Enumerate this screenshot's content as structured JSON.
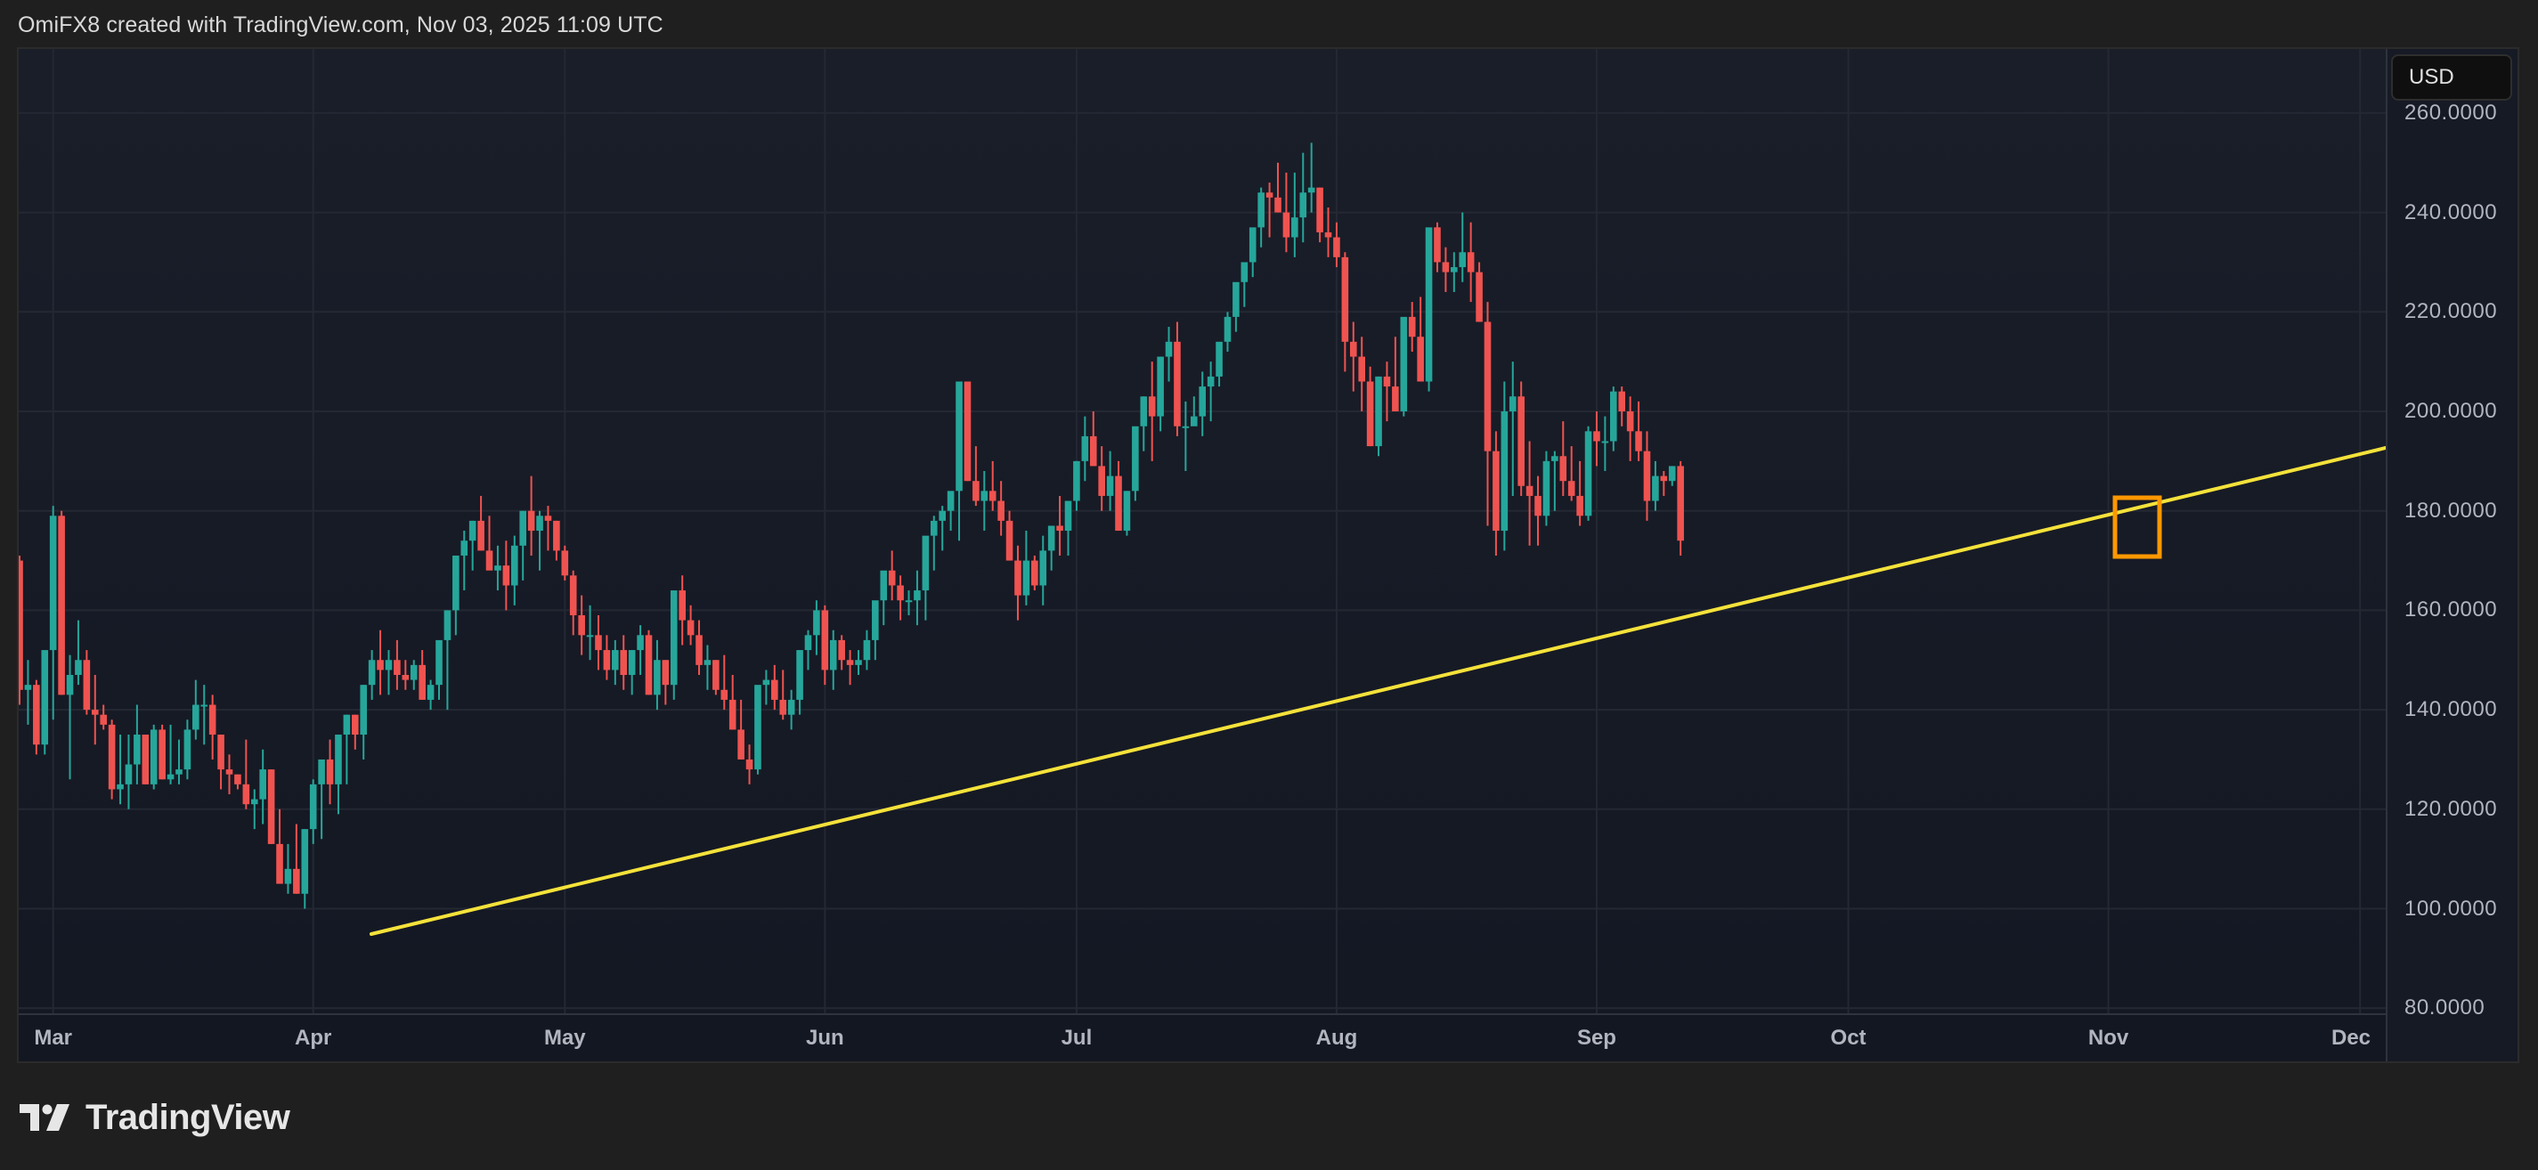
{
  "header": {
    "caption": "OmiFX8 created with TradingView.com, Nov 03, 2025 11:09 UTC"
  },
  "price_axis": {
    "currency_button": "USD",
    "ticks": [
      {
        "value": 260,
        "label": "260.0000"
      },
      {
        "value": 240,
        "label": "240.0000"
      },
      {
        "value": 220,
        "label": "220.0000"
      },
      {
        "value": 200,
        "label": "200.0000"
      },
      {
        "value": 180,
        "label": "180.0000"
      },
      {
        "value": 160,
        "label": "160.0000"
      },
      {
        "value": 140,
        "label": "140.0000"
      },
      {
        "value": 120,
        "label": "120.0000"
      },
      {
        "value": 100,
        "label": "100.0000"
      },
      {
        "value": 80,
        "label": "80.0000"
      }
    ]
  },
  "time_axis": {
    "ticks": [
      {
        "label": "Mar",
        "day": 4
      },
      {
        "label": "Apr",
        "day": 35
      },
      {
        "label": "May",
        "day": 65
      },
      {
        "label": "Jun",
        "day": 96
      },
      {
        "label": "Jul",
        "day": 126
      },
      {
        "label": "Aug",
        "day": 157
      },
      {
        "label": "Sep",
        "day": 188
      },
      {
        "label": "Oct",
        "day": 218
      },
      {
        "label": "Nov",
        "day": 249
      },
      {
        "label": "Dec",
        "day": 279
      }
    ]
  },
  "footer": {
    "brand": "TradingView"
  },
  "colors": {
    "up": "#26a69a",
    "down": "#ef5350",
    "trendline": "#f5e23a",
    "highlight_box": "#ff9800",
    "grid": "#242833"
  },
  "chart_data": {
    "type": "candlestick",
    "title": "",
    "currency": "USD",
    "xlabel": "",
    "ylabel": "",
    "ylim": [
      80,
      262
    ],
    "x_range": [
      "Feb 25, 2025",
      "Nov 3, 2025"
    ],
    "x_ticks": [
      "Mar",
      "Apr",
      "May",
      "Jun",
      "Jul",
      "Aug",
      "Sep",
      "Oct",
      "Nov",
      "Dec"
    ],
    "y_ticks": [
      80,
      100,
      120,
      140,
      160,
      180,
      200,
      220,
      240,
      260
    ],
    "grid": true,
    "first_candle_day_offset": 0,
    "ohlc": [
      [
        170,
        171,
        141,
        144
      ],
      [
        144,
        150,
        137,
        145
      ],
      [
        145,
        146,
        131,
        133
      ],
      [
        133,
        148,
        131,
        152
      ],
      [
        152,
        181,
        138,
        179
      ],
      [
        179,
        180,
        143,
        143
      ],
      [
        143,
        151,
        126,
        147
      ],
      [
        147,
        158,
        145,
        150
      ],
      [
        150,
        152,
        139,
        140
      ],
      [
        140,
        147,
        133,
        139
      ],
      [
        139,
        141,
        136,
        137
      ],
      [
        137,
        138,
        122,
        124
      ],
      [
        124,
        135,
        121,
        125
      ],
      [
        125,
        135,
        120,
        129
      ],
      [
        129,
        141,
        125,
        135
      ],
      [
        135,
        135,
        125,
        125
      ],
      [
        125,
        137,
        124,
        136
      ],
      [
        136,
        137,
        126,
        126
      ],
      [
        126,
        137,
        125,
        127
      ],
      [
        127,
        134,
        125,
        128
      ],
      [
        128,
        138,
        126,
        136
      ],
      [
        136,
        146,
        134,
        141
      ],
      [
        141,
        145,
        133,
        141
      ],
      [
        141,
        143,
        130,
        135
      ],
      [
        135,
        135,
        124,
        128
      ],
      [
        128,
        131,
        123,
        127
      ],
      [
        127,
        127,
        124,
        125
      ],
      [
        125,
        134,
        120,
        121
      ],
      [
        121,
        124,
        116,
        122
      ],
      [
        122,
        132,
        117,
        128
      ],
      [
        128,
        128,
        113,
        113
      ],
      [
        113,
        120,
        108,
        105
      ],
      [
        105,
        113,
        103,
        108
      ],
      [
        108,
        117,
        103,
        103
      ],
      [
        103,
        116,
        100,
        116
      ],
      [
        116,
        126,
        113,
        125
      ],
      [
        125,
        130,
        114,
        130
      ],
      [
        130,
        134,
        121,
        125
      ],
      [
        125,
        134,
        119,
        135
      ],
      [
        135,
        139,
        125,
        139
      ],
      [
        139,
        139,
        132,
        135
      ],
      [
        135,
        145,
        130,
        145
      ],
      [
        145,
        152,
        142,
        150
      ],
      [
        150,
        156,
        143,
        148
      ],
      [
        148,
        152,
        143,
        150
      ],
      [
        150,
        154,
        144,
        147
      ],
      [
        147,
        150,
        144,
        146
      ],
      [
        146,
        150,
        144,
        149
      ],
      [
        149,
        152,
        142,
        142
      ],
      [
        142,
        146,
        140,
        145
      ],
      [
        145,
        150,
        142,
        154
      ],
      [
        154,
        160,
        140,
        160
      ],
      [
        160,
        166,
        155,
        171
      ],
      [
        171,
        176,
        164,
        174
      ],
      [
        174,
        178,
        168,
        178
      ],
      [
        178,
        183,
        172,
        172
      ],
      [
        172,
        179,
        169,
        168
      ],
      [
        168,
        173,
        164,
        169
      ],
      [
        169,
        174,
        160,
        165
      ],
      [
        165,
        175,
        161,
        173
      ],
      [
        173,
        180,
        166,
        180
      ],
      [
        180,
        187,
        171,
        176
      ],
      [
        176,
        180,
        168,
        179
      ],
      [
        179,
        181,
        172,
        178
      ],
      [
        178,
        178,
        170,
        172
      ],
      [
        172,
        173,
        166,
        167
      ],
      [
        167,
        168,
        155,
        159
      ],
      [
        159,
        163,
        151,
        155
      ],
      [
        155,
        161,
        150,
        155
      ],
      [
        155,
        159,
        148,
        152
      ],
      [
        152,
        155,
        146,
        148
      ],
      [
        148,
        154,
        145,
        152
      ],
      [
        152,
        155,
        144,
        147
      ],
      [
        147,
        152,
        143,
        152
      ],
      [
        152,
        157,
        147,
        155
      ],
      [
        155,
        156,
        143,
        143
      ],
      [
        143,
        154,
        140,
        150
      ],
      [
        150,
        150,
        141,
        145
      ],
      [
        145,
        159,
        142,
        164
      ],
      [
        164,
        167,
        153,
        158
      ],
      [
        158,
        161,
        153,
        155
      ],
      [
        155,
        158,
        147,
        149
      ],
      [
        149,
        153,
        144,
        150
      ],
      [
        150,
        150,
        143,
        144
      ],
      [
        144,
        151,
        140,
        142
      ],
      [
        142,
        147,
        136,
        136
      ],
      [
        136,
        142,
        130,
        130
      ],
      [
        130,
        133,
        125,
        128
      ],
      [
        128,
        142,
        127,
        145
      ],
      [
        145,
        148,
        141,
        146
      ],
      [
        146,
        149,
        140,
        142
      ],
      [
        142,
        148,
        138,
        139
      ],
      [
        139,
        144,
        136,
        142
      ],
      [
        142,
        152,
        139,
        152
      ],
      [
        152,
        156,
        148,
        155
      ],
      [
        155,
        162,
        151,
        160
      ],
      [
        160,
        161,
        145,
        148
      ],
      [
        148,
        156,
        144,
        154
      ],
      [
        154,
        155,
        148,
        150
      ],
      [
        150,
        152,
        145,
        149
      ],
      [
        149,
        152,
        147,
        150
      ],
      [
        150,
        156,
        148,
        154
      ],
      [
        154,
        159,
        150,
        162
      ],
      [
        162,
        166,
        157,
        168
      ],
      [
        168,
        172,
        162,
        165
      ],
      [
        165,
        167,
        158,
        162
      ],
      [
        162,
        164,
        159,
        162
      ],
      [
        162,
        168,
        157,
        164
      ],
      [
        164,
        170,
        158,
        175
      ],
      [
        175,
        179,
        168,
        178
      ],
      [
        178,
        181,
        172,
        180
      ],
      [
        180,
        183,
        176,
        184
      ],
      [
        184,
        190,
        174,
        206
      ],
      [
        206,
        206,
        186,
        186
      ],
      [
        186,
        193,
        181,
        182
      ],
      [
        182,
        188,
        176,
        184
      ],
      [
        184,
        190,
        180,
        182
      ],
      [
        182,
        186,
        175,
        178
      ],
      [
        178,
        180,
        170,
        170
      ],
      [
        170,
        173,
        158,
        163
      ],
      [
        163,
        176,
        161,
        170
      ],
      [
        170,
        171,
        164,
        165
      ],
      [
        165,
        175,
        161,
        172
      ],
      [
        172,
        175,
        168,
        177
      ],
      [
        177,
        183,
        171,
        176
      ],
      [
        176,
        180,
        171,
        182
      ],
      [
        182,
        190,
        180,
        190
      ],
      [
        190,
        199,
        186,
        195
      ],
      [
        195,
        200,
        189,
        189
      ],
      [
        189,
        193,
        180,
        183
      ],
      [
        183,
        192,
        180,
        187
      ],
      [
        187,
        190,
        176,
        176
      ],
      [
        176,
        184,
        175,
        184
      ],
      [
        184,
        196,
        182,
        197
      ],
      [
        197,
        203,
        192,
        203
      ],
      [
        203,
        210,
        190,
        199
      ],
      [
        199,
        211,
        196,
        211
      ],
      [
        211,
        217,
        206,
        214
      ],
      [
        214,
        218,
        195,
        197
      ],
      [
        197,
        202,
        188,
        197
      ],
      [
        197,
        203,
        199,
        199
      ],
      [
        199,
        208,
        195,
        205
      ],
      [
        205,
        210,
        198,
        207
      ],
      [
        207,
        212,
        205,
        214
      ],
      [
        214,
        220,
        212,
        219
      ],
      [
        219,
        224,
        216,
        226
      ],
      [
        226,
        229,
        221,
        230
      ],
      [
        230,
        236,
        227,
        237
      ],
      [
        237,
        245,
        233,
        244
      ],
      [
        244,
        246,
        235,
        243
      ],
      [
        243,
        250,
        240,
        240
      ],
      [
        240,
        248,
        232,
        235
      ],
      [
        235,
        248,
        231,
        239
      ],
      [
        239,
        252,
        234,
        244
      ],
      [
        244,
        254,
        240,
        245
      ],
      [
        245,
        245,
        234,
        236
      ],
      [
        236,
        241,
        231,
        235
      ],
      [
        235,
        238,
        229,
        231
      ],
      [
        231,
        232,
        208,
        214
      ],
      [
        214,
        218,
        204,
        211
      ],
      [
        211,
        215,
        200,
        206
      ],
      [
        206,
        209,
        193,
        193
      ],
      [
        193,
        207,
        191,
        207
      ],
      [
        207,
        210,
        198,
        205
      ],
      [
        205,
        215,
        200,
        200
      ],
      [
        200,
        218,
        199,
        219
      ],
      [
        219,
        222,
        212,
        215
      ],
      [
        215,
        223,
        207,
        206
      ],
      [
        206,
        234,
        204,
        237
      ],
      [
        237,
        238,
        228,
        230
      ],
      [
        230,
        233,
        224,
        228
      ],
      [
        228,
        232,
        224,
        229
      ],
      [
        229,
        240,
        226,
        232
      ],
      [
        232,
        238,
        222,
        228
      ],
      [
        228,
        230,
        218,
        218
      ],
      [
        218,
        222,
        177,
        192
      ],
      [
        192,
        196,
        171,
        176
      ],
      [
        176,
        206,
        172,
        200
      ],
      [
        200,
        210,
        183,
        203
      ],
      [
        203,
        206,
        183,
        185
      ],
      [
        185,
        194,
        173,
        183
      ],
      [
        183,
        187,
        173,
        179
      ],
      [
        179,
        192,
        177,
        190
      ],
      [
        190,
        192,
        180,
        191
      ],
      [
        191,
        198,
        183,
        186
      ],
      [
        186,
        193,
        182,
        183
      ],
      [
        183,
        190,
        177,
        179
      ],
      [
        179,
        197,
        178,
        196
      ],
      [
        196,
        200,
        189,
        194
      ],
      [
        194,
        199,
        188,
        194
      ],
      [
        194,
        205,
        192,
        204
      ],
      [
        204,
        205,
        197,
        200
      ],
      [
        200,
        203,
        190,
        196
      ],
      [
        196,
        202,
        190,
        192
      ],
      [
        192,
        196,
        178,
        182
      ],
      [
        182,
        190,
        180,
        187
      ],
      [
        187,
        188,
        183,
        186
      ],
      [
        186,
        189,
        185,
        189
      ],
      [
        189,
        190,
        171,
        174
      ]
    ],
    "trendline": {
      "from": {
        "date": "Apr 7, 2025",
        "price": 95.5
      },
      "to": {
        "date": "Dec 3, 2025",
        "price": 192.5
      },
      "color": "#f5e23a"
    },
    "highlight_box": {
      "date": "Nov 3, 2025",
      "price_top": 183,
      "price_bottom": 170.5,
      "color": "#ff9800"
    }
  }
}
